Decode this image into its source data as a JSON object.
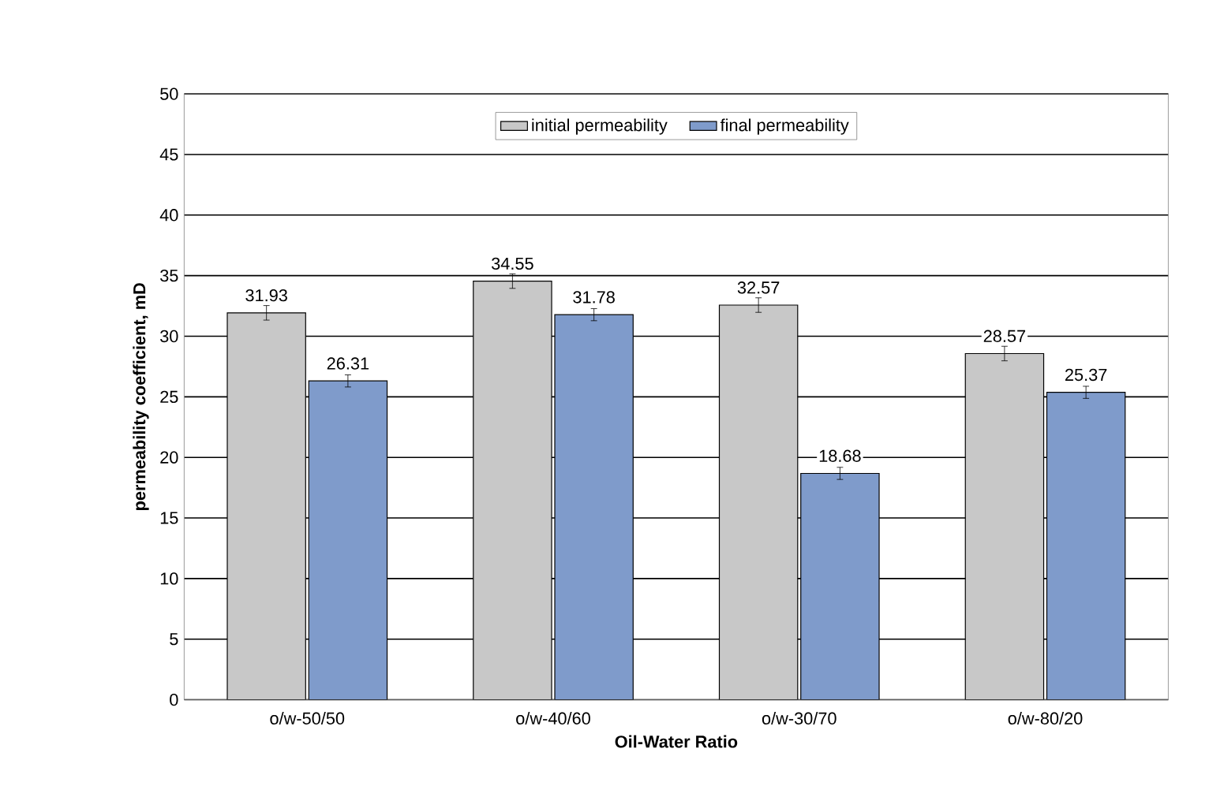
{
  "chart_data": {
    "type": "bar",
    "xlabel": "Oil-Water Ratio",
    "ylabel": "permeability coefficient,  mD",
    "categories": [
      "o/w-50/50",
      "o/w-40/60",
      "o/w-30/70",
      "o/w-80/20"
    ],
    "series": [
      {
        "name": "initial permeability",
        "color": "#c8c8c8",
        "values": [
          31.93,
          34.55,
          32.57,
          28.57
        ],
        "errors": [
          0.6,
          0.6,
          0.6,
          0.6
        ]
      },
      {
        "name": "final permeability",
        "color": "#7f9bcb",
        "values": [
          26.31,
          31.78,
          18.68,
          25.37
        ],
        "errors": [
          0.5,
          0.5,
          0.5,
          0.5
        ]
      }
    ],
    "ylim": [
      0,
      50
    ],
    "yticks": [
      0,
      5,
      10,
      15,
      20,
      25,
      30,
      35,
      40,
      45,
      50
    ],
    "grid": "y",
    "legend": "top",
    "data_labels": true
  }
}
